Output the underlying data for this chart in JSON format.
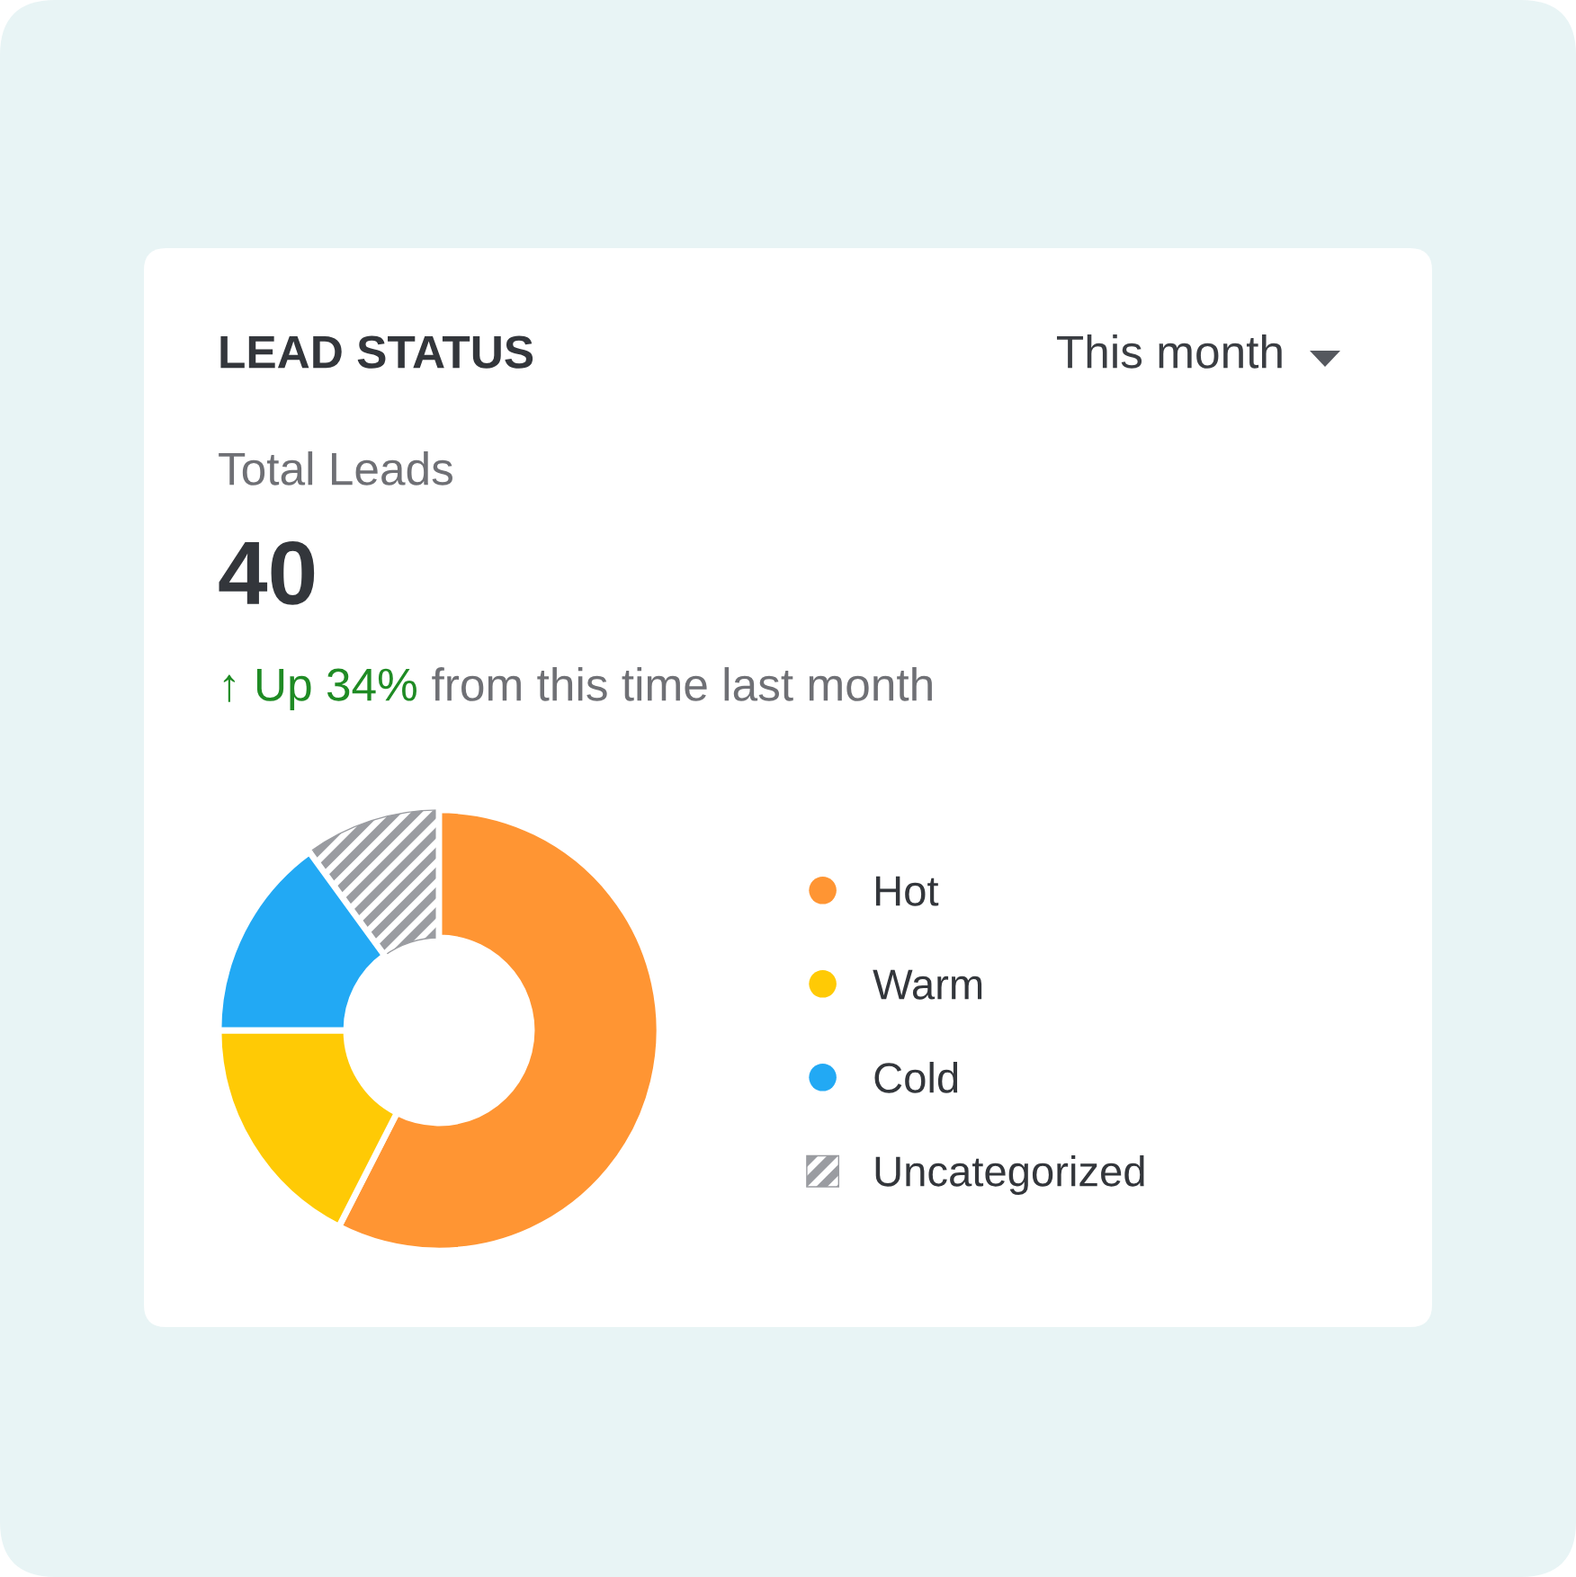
{
  "chart_data": {
    "type": "donut",
    "title": "LEAD STATUS",
    "annotations": [
      "This month",
      "Total Leads",
      "40",
      "↑ Up 34%",
      "from this time last month"
    ],
    "categories": [
      "Hot",
      "Warm",
      "Cold",
      "Uncategorized"
    ],
    "values": [
      57.5,
      17.5,
      15,
      10
    ],
    "colors": [
      "#ff9533",
      "#ffca05",
      "#22a9f4",
      "#9a9ca1"
    ],
    "legend": "right"
  }
}
